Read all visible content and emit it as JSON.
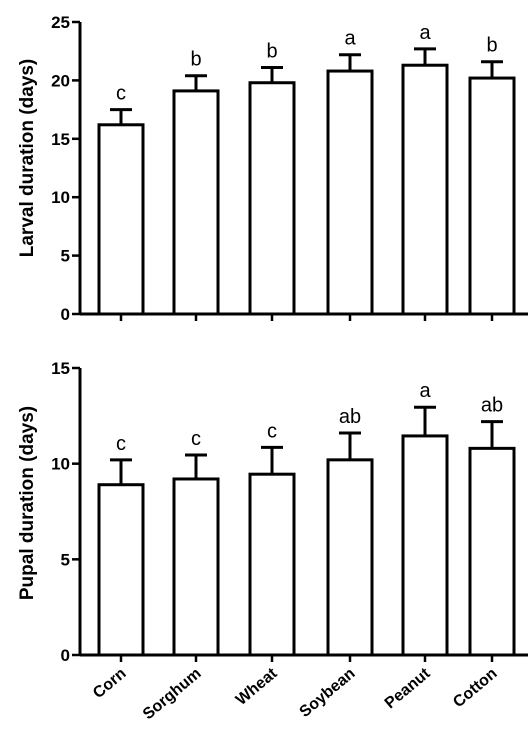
{
  "chart_data": [
    {
      "type": "bar",
      "categories": [
        "Corn",
        "Sorghum",
        "Wheat",
        "Soybean",
        "Peanut",
        "Cotton"
      ],
      "values": [
        16.2,
        19.1,
        19.8,
        20.8,
        21.3,
        20.2
      ],
      "errors": [
        1.3,
        1.3,
        1.3,
        1.4,
        1.4,
        1.4
      ],
      "significance": [
        "c",
        "b",
        "b",
        "a",
        "a",
        "b"
      ],
      "ylabel": "Larval duration (days)",
      "ylim": [
        0,
        25
      ],
      "yticks": [
        "0",
        "5",
        "10",
        "15",
        "20",
        "25"
      ],
      "grid": false
    },
    {
      "type": "bar",
      "categories": [
        "Corn",
        "Sorghum",
        "Wheat",
        "Soybean",
        "Peanut",
        "Cotton"
      ],
      "values": [
        8.9,
        9.2,
        9.45,
        10.2,
        11.45,
        10.8
      ],
      "errors": [
        1.3,
        1.25,
        1.4,
        1.4,
        1.5,
        1.4
      ],
      "significance": [
        "c",
        "c",
        "c",
        "ab",
        "a",
        "ab"
      ],
      "ylabel": "Pupal duration (days)",
      "ylim": [
        0,
        15
      ],
      "yticks": [
        "0",
        "5",
        "10",
        "15"
      ],
      "grid": false
    }
  ]
}
